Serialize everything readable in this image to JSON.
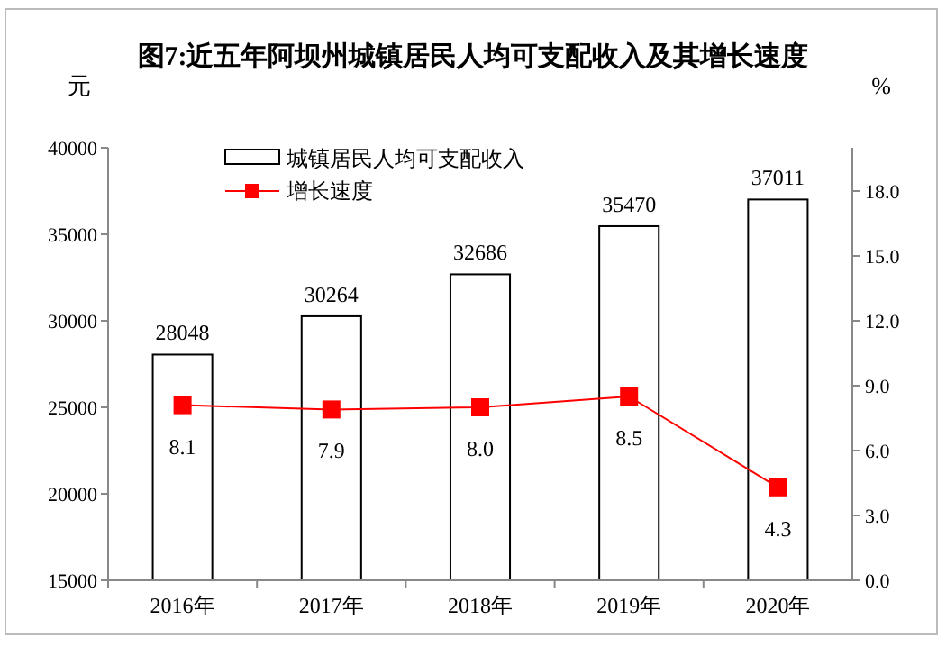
{
  "chart_data": {
    "type": "bar",
    "title": "图7:近五年阿坝州城镇居民人均可支配收入及其增长速度",
    "ylabel": "元",
    "y2label": "%",
    "categories": [
      "2016年",
      "2017年",
      "2018年",
      "2019年",
      "2020年"
    ],
    "series": [
      {
        "name": "城镇居民人均可支配收入",
        "color": "#ffffff",
        "values": [
          28048,
          30264,
          32686,
          35470,
          37011
        ],
        "value_labels": [
          "28048",
          "30264",
          "32686",
          "35470",
          "37011"
        ]
      },
      {
        "name": "增长速度",
        "type": "line",
        "axis": "y2",
        "color": "#ff0000",
        "marker": "square",
        "values": [
          8.1,
          7.9,
          8.0,
          8.5,
          4.3
        ],
        "value_labels": [
          "8.1",
          "7.9",
          "8.0",
          "8.5",
          "4.3"
        ]
      }
    ],
    "ylim": [
      15000,
      40000
    ],
    "yticks": [
      15000,
      20000,
      25000,
      30000,
      35000,
      40000
    ],
    "y2lim": [
      0,
      20
    ],
    "y2ticks": [
      {
        "value": 0,
        "label": "0.0"
      },
      {
        "value": 3,
        "label": "3.0"
      },
      {
        "value": 6,
        "label": "6.0"
      },
      {
        "value": 9,
        "label": "9.0"
      },
      {
        "value": 12,
        "label": "12.0"
      },
      {
        "value": 15,
        "label": "15.0"
      },
      {
        "value": 18,
        "label": "18.0"
      }
    ],
    "legend": "top left",
    "grid": false
  }
}
